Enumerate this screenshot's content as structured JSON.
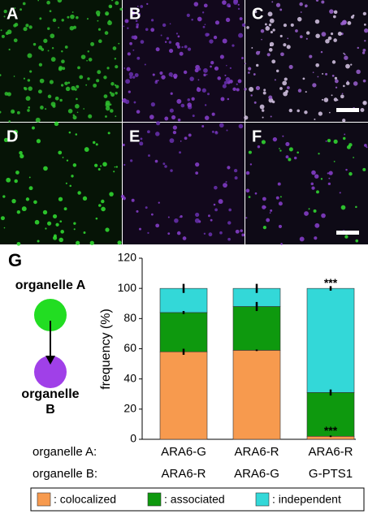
{
  "panels": [
    "A",
    "B",
    "C",
    "D",
    "E",
    "F"
  ],
  "panel_g_label": "G",
  "diagram": {
    "top": "organelle A",
    "bottom_line1": "organelle",
    "bottom_line2": "B"
  },
  "chart_data": {
    "type": "stacked-bar",
    "y_label": "frequency (%)",
    "category_row_labels": [
      "organelle A:",
      "organelle B:"
    ],
    "categories": [
      "ARA6-G",
      "ARA6-R",
      "ARA6-R"
    ],
    "categories_b": [
      "ARA6-R",
      "ARA6-G",
      "G-PTS1"
    ],
    "series": [
      {
        "name": ": colocalized",
        "color": "#f79a4e",
        "values": [
          58,
          59,
          2
        ],
        "errors": [
          2,
          0.5,
          0.5
        ]
      },
      {
        "name": ": associated",
        "color": "#0e990e",
        "values": [
          26,
          29,
          29
        ],
        "errors": [
          1,
          3,
          2
        ]
      },
      {
        "name": ": independent",
        "color": "#33d8d8",
        "values": [
          16,
          12,
          69
        ],
        "errors": [
          3,
          3,
          1.5
        ]
      }
    ],
    "annotations": [
      {
        "category": 2,
        "series": 2,
        "text": "***"
      },
      {
        "category": 2,
        "series": 0,
        "text": "***"
      }
    ],
    "ylim": [
      0,
      120
    ],
    "yticks": [
      0,
      20,
      40,
      60,
      80,
      100,
      120
    ]
  }
}
